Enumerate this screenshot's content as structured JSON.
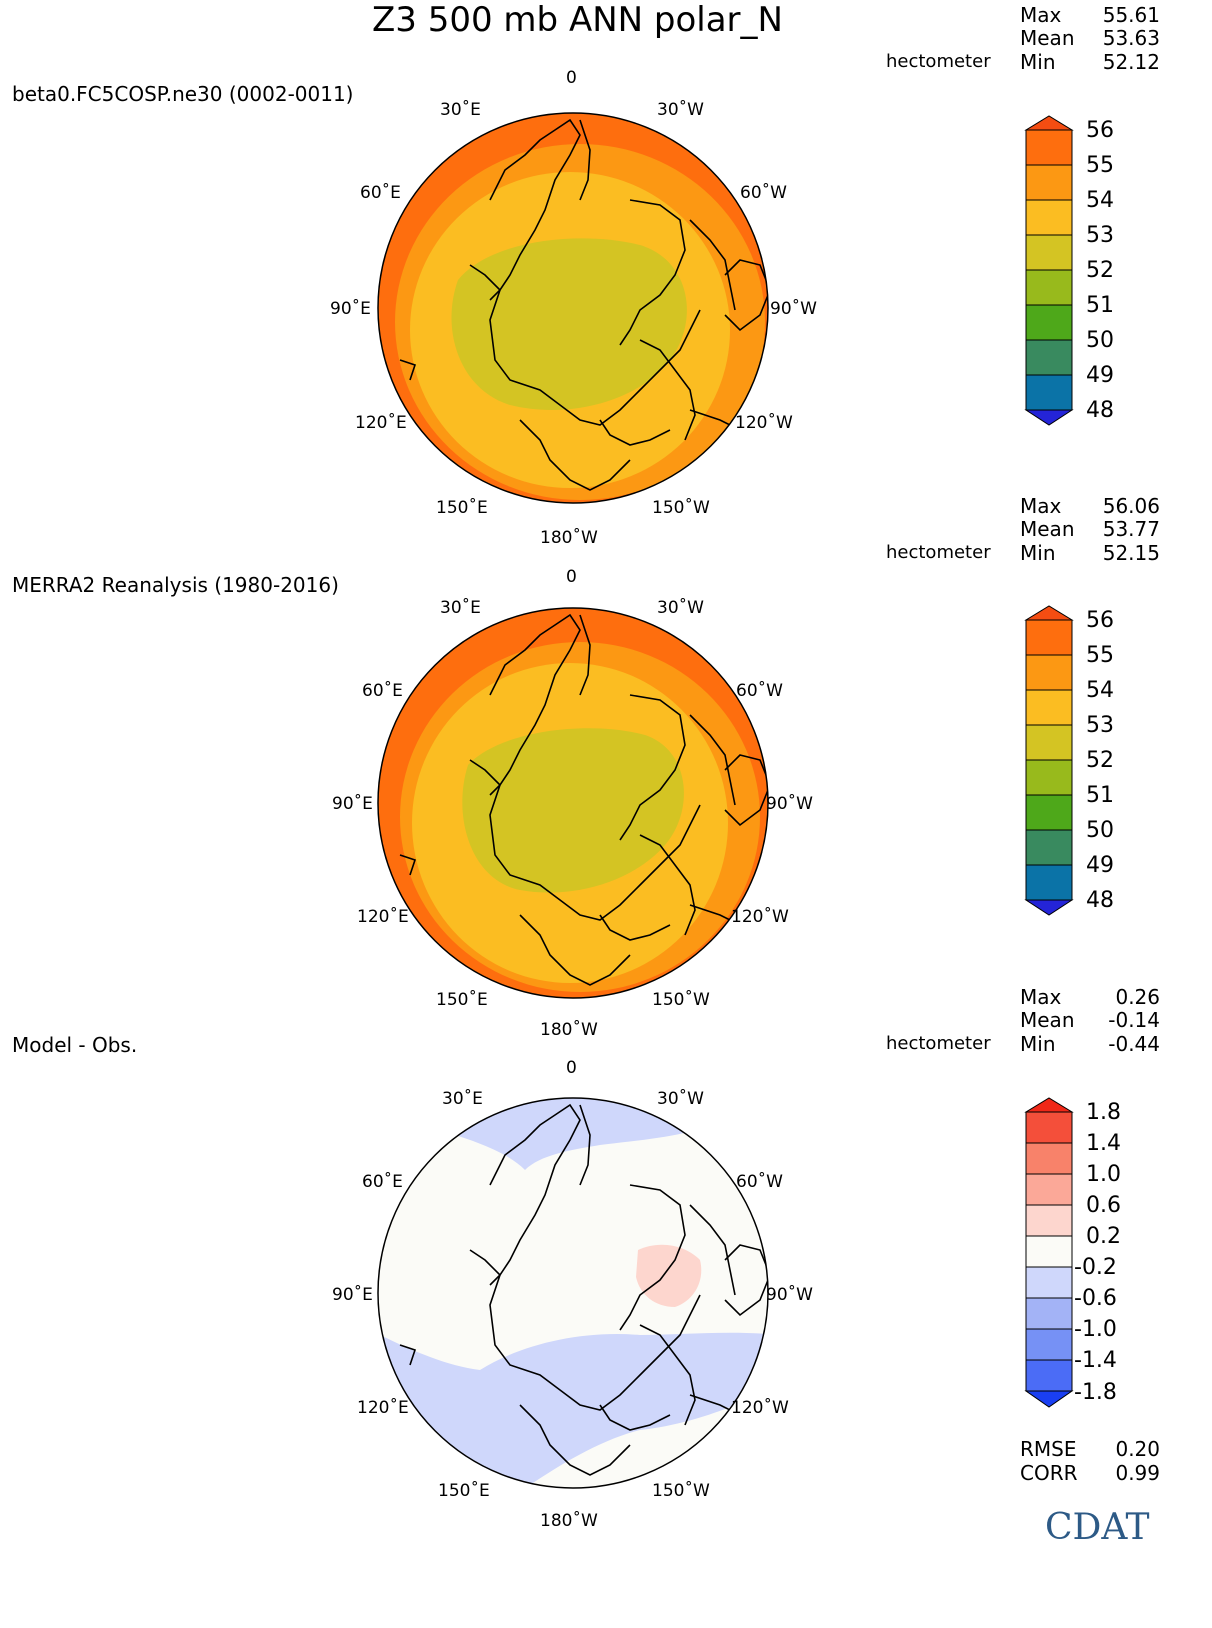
{
  "title": "Z3 500 mb ANN polar_N",
  "units": "hectometer",
  "panels": [
    {
      "label": "beta0.FC5COSP.ne30 (0002-0011)",
      "stats": {
        "max": "55.61",
        "mean": "53.63",
        "min": "52.12"
      },
      "colorbar": {
        "labels": [
          "56",
          "55",
          "54",
          "53",
          "52",
          "51",
          "50",
          "49",
          "48"
        ],
        "colors": [
          "#f44d12",
          "#fe6e0e",
          "#fc9813",
          "#fbbd22",
          "#d4c423",
          "#98ba1c",
          "#4ea81a",
          "#398a5f",
          "#0b73a7",
          "#2424d8"
        ]
      },
      "bands": [
        "#d4c423",
        "#fbbd22",
        "#fc9813",
        "#fe6e0e"
      ]
    },
    {
      "label": "MERRA2 Reanalysis (1980-2016)",
      "stats": {
        "max": "56.06",
        "mean": "53.77",
        "min": "52.15"
      },
      "colorbar": {
        "labels": [
          "56",
          "55",
          "54",
          "53",
          "52",
          "51",
          "50",
          "49",
          "48"
        ],
        "colors": [
          "#f44d12",
          "#fe6e0e",
          "#fc9813",
          "#fbbd22",
          "#d4c423",
          "#98ba1c",
          "#4ea81a",
          "#398a5f",
          "#0b73a7",
          "#2424d8"
        ]
      },
      "bands": [
        "#d4c423",
        "#fbbd22",
        "#fc9813",
        "#fe6e0e"
      ]
    },
    {
      "label": "Model - Obs.",
      "stats": {
        "max": "0.26",
        "mean": "-0.14",
        "min": "-0.44"
      },
      "colorbar": {
        "labels": [
          "1.8",
          "1.4",
          "1.0",
          "0.6",
          "0.2",
          "-0.2",
          "-0.6",
          "-1.0",
          "-1.4",
          "-1.8"
        ],
        "colors": [
          "#f02818",
          "#f44f3a",
          "#f8826a",
          "#fba898",
          "#fdd6ce",
          "#fbfbf7",
          "#cfd7fb",
          "#a3b3f6",
          "#7691f5",
          "#4b6cf6",
          "#1a3ff2"
        ]
      },
      "bands": [
        "#fbfbf7",
        "#cfd7fb",
        "#fdd6ce"
      ]
    }
  ],
  "longitude_labels": [
    "0",
    "30˚E",
    "30˚W",
    "60˚E",
    "60˚W",
    "90˚E",
    "90˚W",
    "120˚E",
    "120˚W",
    "150˚E",
    "150˚W",
    "180˚W"
  ],
  "diff_metrics": {
    "rmse_label": "RMSE",
    "rmse": "0.20",
    "corr_label": "CORR",
    "corr": "0.99"
  },
  "stat_labels": {
    "max": "Max",
    "mean": "Mean",
    "min": "Min"
  },
  "logo_text": "CDAT"
}
